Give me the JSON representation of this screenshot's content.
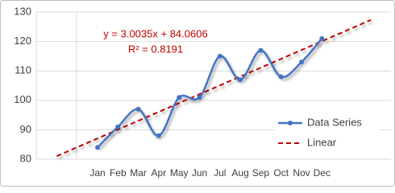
{
  "chart_data": {
    "type": "line",
    "smooth": true,
    "categories": [
      null,
      null,
      "Jan",
      "Feb",
      "Mar",
      "Apr",
      "May",
      "Jun",
      "Jul",
      "Aug",
      "Sep",
      "Oct",
      "Nov",
      "Dec",
      null,
      null,
      null
    ],
    "series": [
      {
        "name": "Data Series",
        "color": "#4472c4",
        "values": [
          null,
          null,
          84,
          91,
          97,
          88,
          101,
          101,
          115,
          107,
          117,
          108,
          113,
          121,
          null,
          null,
          null
        ]
      }
    ],
    "trendline": {
      "name": "Linear",
      "color": "#c00000",
      "slope": 3.0035,
      "intercept": 84.0606,
      "forecast_backward": 2,
      "forecast_forward": 2.4
    },
    "annotations": [
      "y = 3.0035x + 84.0606",
      "R² = 0.8191"
    ],
    "ylim": [
      80,
      130
    ],
    "yticks": [
      80,
      90,
      100,
      110,
      120,
      130
    ],
    "grid": true,
    "legend": "bottom-right"
  }
}
